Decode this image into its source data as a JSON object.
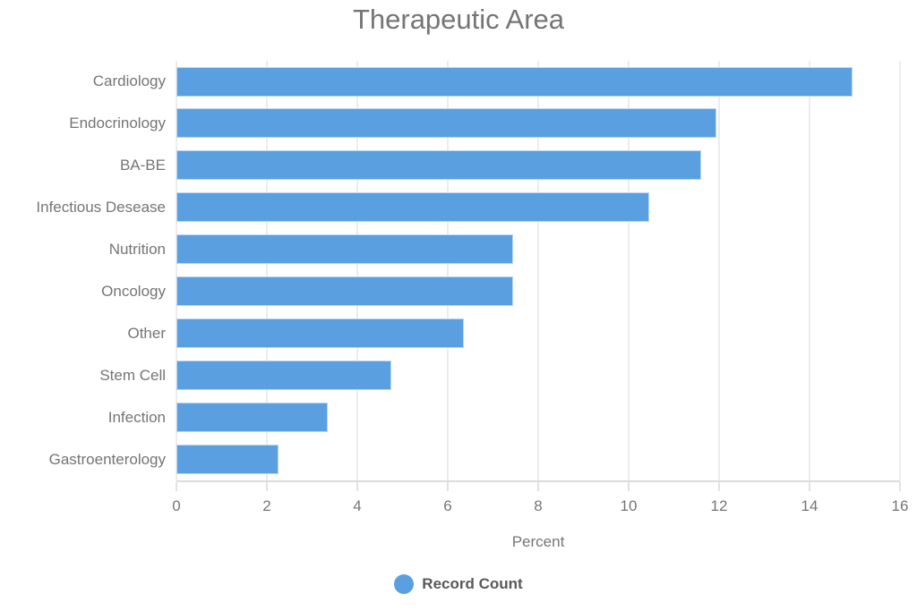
{
  "chart_data": {
    "type": "bar",
    "orientation": "horizontal",
    "title": "Therapeutic Area",
    "categories": [
      "Cardiology",
      "Endocrinology",
      "BA-BE",
      "Infectious Desease",
      "Nutrition",
      "Oncology",
      "Other",
      "Stem Cell",
      "Infection",
      "Gastroenterology"
    ],
    "values": [
      14.95,
      11.95,
      11.6,
      10.45,
      7.45,
      7.45,
      6.35,
      4.75,
      3.35,
      2.25
    ],
    "series_name": "Record Count",
    "xlabel": "Percent",
    "xlim": [
      0,
      16
    ],
    "xticks": [
      "0",
      "2",
      "4",
      "6",
      "8",
      "10",
      "12",
      "14",
      "16"
    ],
    "grid": "vertical-only",
    "legend_position": "bottom-center",
    "colors": {
      "bar": "#5a9fe0",
      "bar_border": "#b9d6f2",
      "title_text": "#757575",
      "axis_text": "#757575",
      "legend_text": "#595959",
      "gridline": "#ececec",
      "axis_line": "#dcdcdc"
    }
  }
}
